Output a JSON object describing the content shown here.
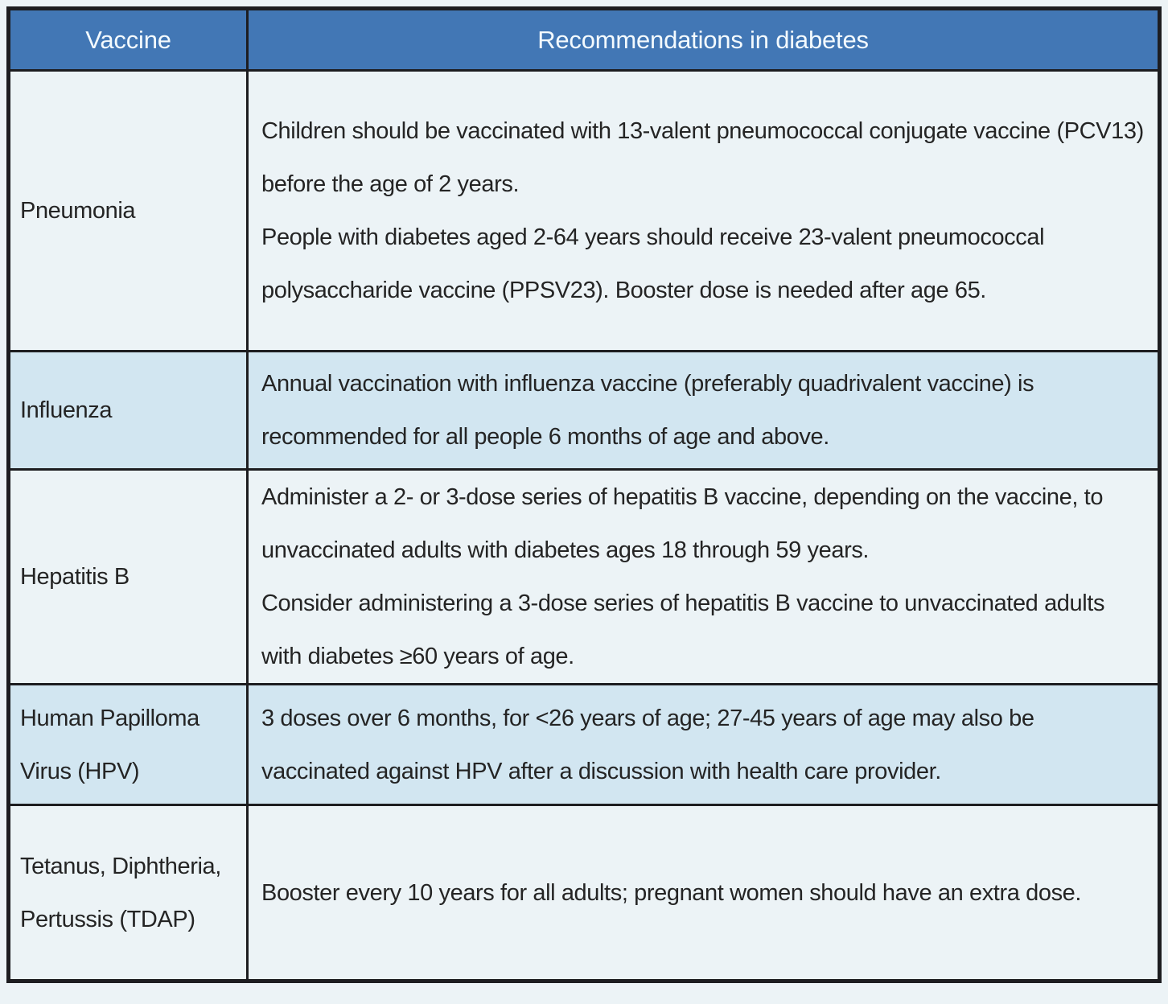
{
  "table": {
    "columns": [
      "Vaccine",
      "Recommendations in diabetes"
    ],
    "rows": [
      {
        "vaccine": "Pneumonia",
        "rec": [
          "Children should be vaccinated with 13-valent pneumococcal conjugate vaccine (PCV13) before the age of 2 years.",
          "People with diabetes aged 2-64 years should receive 23-valent pneumococcal polysaccharide vaccine (PPSV23). Booster dose is needed after age 65."
        ]
      },
      {
        "vaccine": "Influenza",
        "rec": [
          "Annual vaccination with influenza vaccine (preferably quadrivalent vaccine) is recommended for all people 6 months of age and above."
        ]
      },
      {
        "vaccine": "Hepatitis B",
        "rec": [
          "Administer a 2- or 3-dose series of hepatitis B vaccine, depending on the vaccine, to unvaccinated adults with diabetes ages 18 through 59 years.",
          "Consider administering a 3-dose series of hepatitis B vaccine to unvaccinated adults with diabetes ≥60 years of age."
        ]
      },
      {
        "vaccine": "Human Papilloma Virus (HPV)",
        "rec": [
          "3 doses over 6 months, for <26 years of age; 27-45 years of age may also be vaccinated against HPV after a discussion with health care provider."
        ]
      },
      {
        "vaccine": "Tetanus, Diphtheria, Pertussis (TDAP)",
        "rec": [
          "Booster every 10 years for all adults; pregnant women should have an extra dose."
        ]
      }
    ]
  },
  "colors": {
    "header_bg": "#4277b5",
    "header_text": "#f3fafe",
    "row_light": "#ecf3f6",
    "row_accent": "#d2e6f1",
    "border": "#1d1d20",
    "body_text": "#242424"
  }
}
